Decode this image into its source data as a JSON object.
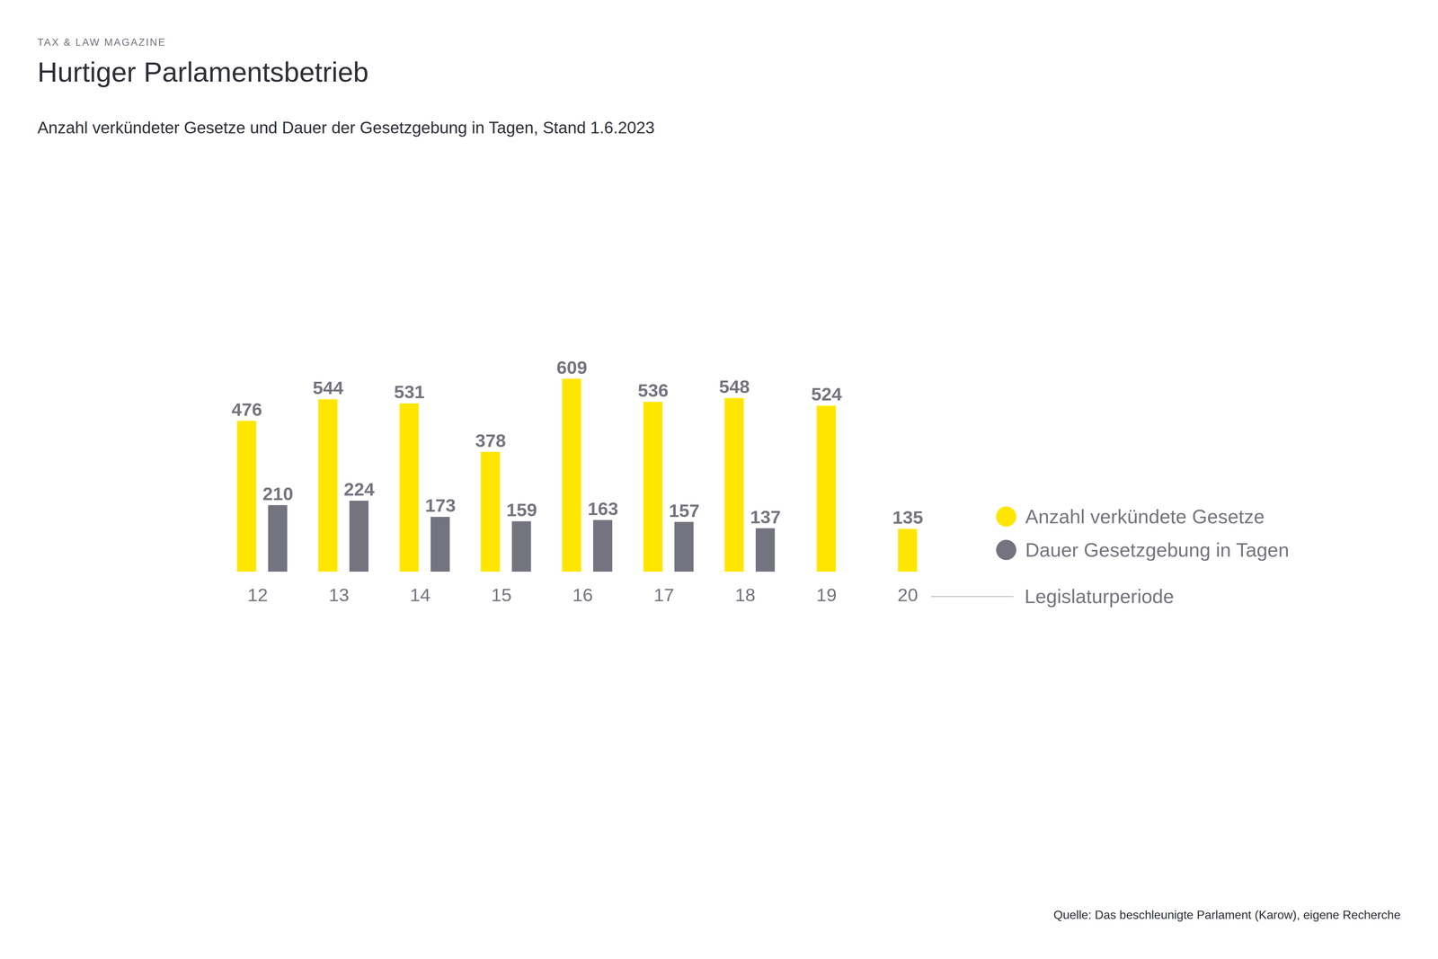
{
  "chart_data": {
    "type": "bar",
    "supertitle": "TAX & LAW MAGAZINE",
    "title": "Hurtiger Parlamentsbetrieb",
    "subtitle": "Anzahl verkündeter Gesetze und Dauer der Gesetzgebung in Tagen, Stand 1.6.2023",
    "source": "Quelle: Das beschleunigte Parlament (Karow), eigene Recherche",
    "xlabel": "Legislaturperiode",
    "categories": [
      "12",
      "13",
      "14",
      "15",
      "16",
      "17",
      "18",
      "19",
      "20"
    ],
    "series": [
      {
        "name": "Anzahl verkündete Gesetze",
        "color": "#ffe600",
        "values": [
          476,
          544,
          531,
          378,
          609,
          536,
          548,
          524,
          135
        ]
      },
      {
        "name": "Dauer Gesetzgebung in Tagen",
        "color": "#747480",
        "values": [
          210,
          224,
          173,
          159,
          163,
          157,
          137,
          null,
          null
        ]
      }
    ],
    "ylim": [
      0,
      609
    ],
    "yticks": [],
    "tick_labels": "x",
    "data_labels": true,
    "legend": "right"
  }
}
